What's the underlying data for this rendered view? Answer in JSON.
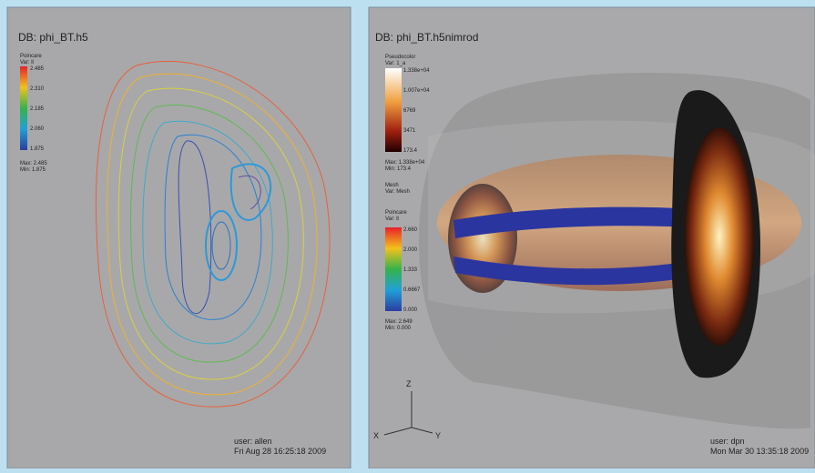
{
  "panels": [
    {
      "db": "DB: phi_BT.h5",
      "legend": {
        "plot": "Poincare",
        "var": "Var: ll",
        "ticks": [
          "2.485",
          "2.310",
          "2.185",
          "2.060",
          "1.875"
        ],
        "max": "Max: 2.485",
        "min": "Min: 1.875"
      },
      "user": "user: allen",
      "date": "Fri Aug 28 16:25:18 2009"
    },
    {
      "db": "DB: phi_BT.h5nimrod",
      "legend": {
        "plot": "Pseudocolor",
        "var": "Var: 1_a",
        "ticks": [
          "1.338e+04",
          "1.007e+04",
          "6769",
          "3471",
          "173.4"
        ],
        "max": "Max: 1.338e+04",
        "min": "Min: 173.4"
      },
      "mesh": {
        "plot": "Mesh",
        "var": "Var: Mesh"
      },
      "legend2": {
        "plot": "Poincare",
        "var": "Var: ll",
        "ticks": [
          "2.660",
          "2.000",
          "1.333",
          "0.6667",
          "0.000"
        ],
        "max": "Max: 2.649",
        "min": "Min: 0.000"
      },
      "axes": {
        "z": "Z",
        "x": "X",
        "y": "Y"
      },
      "user": "user: dpn",
      "date": "Mon Mar 30 13:35:18 2009"
    }
  ]
}
